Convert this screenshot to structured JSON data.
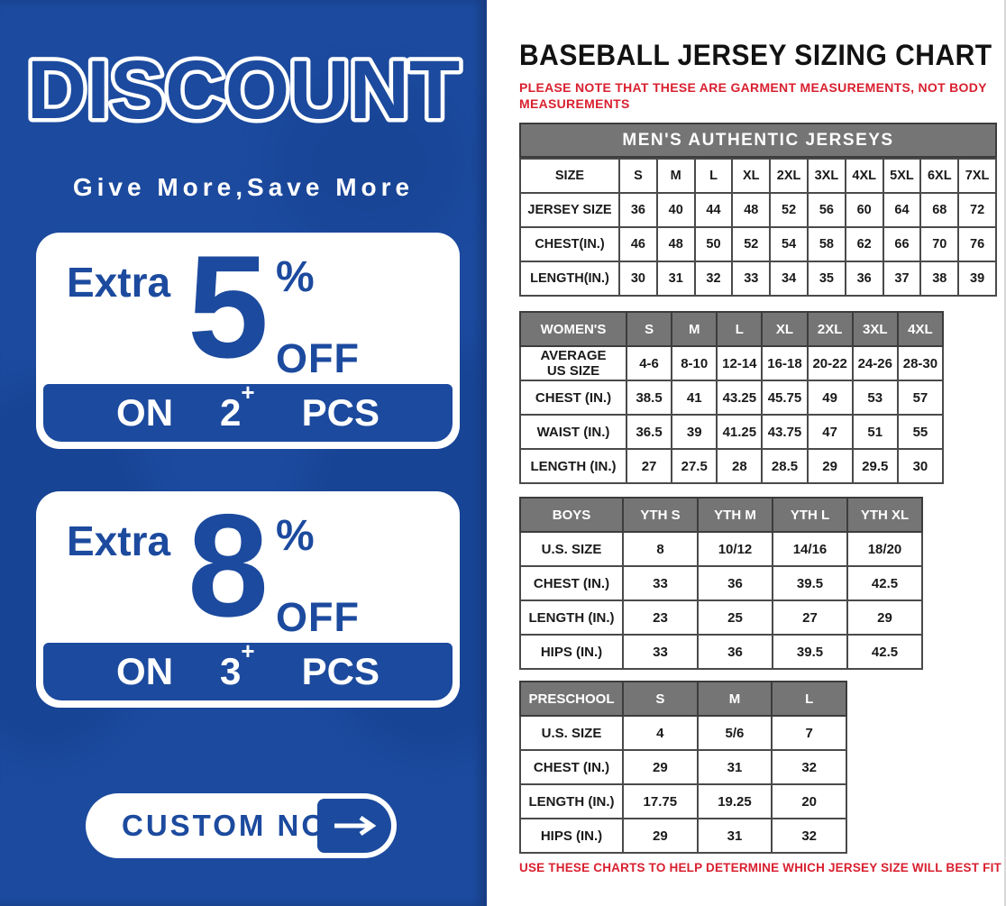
{
  "colors": {
    "promo_blue": "#1c4a9e",
    "note_red": "#d9202f",
    "table_header_gray": "#757575",
    "table_border": "#4a4a4a",
    "white": "#ffffff"
  },
  "promo": {
    "title": "DISCOUNT",
    "subtitle": "Give More,Save More",
    "offers": [
      {
        "extra": "Extra",
        "value": "5",
        "percent": "%",
        "off": "OFF",
        "on": "ON",
        "qty": "2",
        "plus": "+",
        "pcs": "PCS"
      },
      {
        "extra": "Extra",
        "value": "8",
        "percent": "%",
        "off": "OFF",
        "on": "ON",
        "qty": "3",
        "plus": "+",
        "pcs": "PCS"
      }
    ],
    "cta_label": "CUSTOM NOW"
  },
  "sizing": {
    "title": "BASEBALL JERSEY SIZING CHART",
    "note_top": "PLEASE NOTE THAT THESE ARE GARMENT MEASUREMENTS, NOT BODY MEASUREMENTS",
    "note_bottom": "USE THESE CHARTS TO HELP DETERMINE WHICH JERSEY SIZE WILL BEST FIT YOU.",
    "tables": [
      {
        "id": "mens",
        "banner": "MEN'S AUTHENTIC JERSEYS",
        "header_style": "plain",
        "header": [
          "SIZE",
          "S",
          "M",
          "L",
          "XL",
          "2XL",
          "3XL",
          "4XL",
          "5XL",
          "6XL",
          "7XL"
        ],
        "rows": [
          [
            "JERSEY SIZE",
            "36",
            "40",
            "44",
            "48",
            "52",
            "56",
            "60",
            "64",
            "68",
            "72"
          ],
          [
            "CHEST(IN.)",
            "46",
            "48",
            "50",
            "52",
            "54",
            "58",
            "62",
            "66",
            "70",
            "76"
          ],
          [
            "LENGTH(IN.)",
            "30",
            "31",
            "32",
            "33",
            "34",
            "35",
            "36",
            "37",
            "38",
            "39"
          ]
        ]
      },
      {
        "id": "womens",
        "banner": null,
        "header_style": "gray",
        "header": [
          "WOMEN'S",
          "S",
          "M",
          "L",
          "XL",
          "2XL",
          "3XL",
          "4XL"
        ],
        "rows": [
          [
            "AVERAGE\nUS SIZE",
            "4-6",
            "8-10",
            "12-14",
            "16-18",
            "20-22",
            "24-26",
            "28-30"
          ],
          [
            "CHEST (IN.)",
            "38.5",
            "41",
            "43.25",
            "45.75",
            "49",
            "53",
            "57"
          ],
          [
            "WAIST (IN.)",
            "36.5",
            "39",
            "41.25",
            "43.75",
            "47",
            "51",
            "55"
          ],
          [
            "LENGTH (IN.)",
            "27",
            "27.5",
            "28",
            "28.5",
            "29",
            "29.5",
            "30"
          ]
        ]
      },
      {
        "id": "boys",
        "banner": null,
        "header_style": "gray",
        "header": [
          "BOYS",
          "YTH S",
          "YTH M",
          "YTH L",
          "YTH XL"
        ],
        "rows": [
          [
            "U.S. SIZE",
            "8",
            "10/12",
            "14/16",
            "18/20"
          ],
          [
            "CHEST (IN.)",
            "33",
            "36",
            "39.5",
            "42.5"
          ],
          [
            "LENGTH (IN.)",
            "23",
            "25",
            "27",
            "29"
          ],
          [
            "HIPS (IN.)",
            "33",
            "36",
            "39.5",
            "42.5"
          ]
        ]
      },
      {
        "id": "preschool",
        "banner": null,
        "header_style": "gray",
        "header": [
          "PRESCHOOL",
          "S",
          "M",
          "L"
        ],
        "rows": [
          [
            "U.S. SIZE",
            "4",
            "5/6",
            "7"
          ],
          [
            "CHEST (IN.)",
            "29",
            "31",
            "32"
          ],
          [
            "LENGTH (IN.)",
            "17.75",
            "19.25",
            "20"
          ],
          [
            "HIPS (IN.)",
            "29",
            "31",
            "32"
          ]
        ]
      }
    ]
  }
}
